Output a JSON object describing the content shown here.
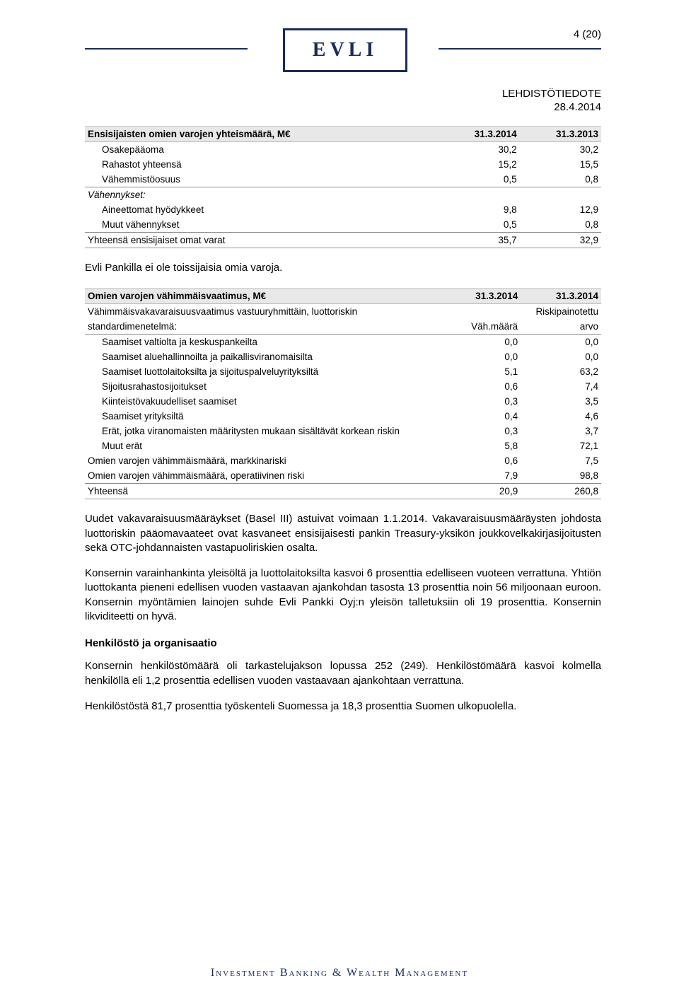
{
  "meta": {
    "page_label": "4 (20)",
    "logo_text": "EVLI",
    "doc_type": "LEHDISTÖTIEDOTE",
    "date": "28.4.2014"
  },
  "table1": {
    "title": "Ensisijaisten omien varojen yhteismäärä, M€",
    "col1": "31.3.2014",
    "col2": "31.3.2013",
    "rows": [
      {
        "label": "Osakepääoma",
        "v1": "30,2",
        "v2": "30,2",
        "indent": true
      },
      {
        "label": "Rahastot yhteensä",
        "v1": "15,2",
        "v2": "15,5",
        "indent": true
      },
      {
        "label": "Vähemmistöosuus",
        "v1": "0,5",
        "v2": "0,8",
        "indent": true,
        "thin": true
      }
    ],
    "vahen_label": "Vähennykset:",
    "vahen_rows": [
      {
        "label": "Aineettomat hyödykkeet",
        "v1": "9,8",
        "v2": "12,9",
        "indent": true
      },
      {
        "label": "Muut vähennykset",
        "v1": "0,5",
        "v2": "0,8",
        "indent": true,
        "thin": true
      }
    ],
    "total": {
      "label": "Yhteensä ensisijaiset omat varat",
      "v1": "35,7",
      "v2": "32,9"
    }
  },
  "note": "Evli Pankilla ei ole toissijaisia omia varoja.",
  "table2": {
    "title": "Omien varojen vähimmäisvaatimus, M€",
    "col1": "31.3.2014",
    "col2": "31.3.2014",
    "sub1a": "Vähimmäisvakavaraisuusvaatimus vastuuryhmittäin, luottoriskin",
    "sub1b": "Riskipainotettu",
    "sub2a": "standardimenetelmä:",
    "sub2b": "Väh.määrä",
    "sub2c": "arvo",
    "rows": [
      {
        "label": "Saamiset valtiolta ja keskuspankeilta",
        "v1": "0,0",
        "v2": "0,0",
        "indent": true
      },
      {
        "label": "Saamiset aluehallinnoilta ja paikallisviranomaisilta",
        "v1": "0,0",
        "v2": "0,0",
        "indent": true
      },
      {
        "label": "Saamiset luottolaitoksilta ja sijoituspalveluyrityksiltä",
        "v1": "5,1",
        "v2": "63,2",
        "indent": true
      },
      {
        "label": "Sijoitusrahastosijoitukset",
        "v1": "0,6",
        "v2": "7,4",
        "indent": true
      },
      {
        "label": "Kiinteistövakuudelliset saamiset",
        "v1": "0,3",
        "v2": "3,5",
        "indent": true
      },
      {
        "label": "Saamiset yrityksiltä",
        "v1": "0,4",
        "v2": "4,6",
        "indent": true
      },
      {
        "label": "Erät, jotka viranomaisten määritysten mukaan sisältävät korkean riskin",
        "v1": "0,3",
        "v2": "3,7",
        "indent": true
      },
      {
        "label": "Muut erät",
        "v1": "5,8",
        "v2": "72,1",
        "indent": true
      }
    ],
    "extra": [
      {
        "label": "Omien varojen vähimmäismäärä, markkinariski",
        "v1": "0,6",
        "v2": "7,5"
      },
      {
        "label": "Omien varojen vähimmäismäärä, operatiivinen riski",
        "v1": "7,9",
        "v2": "98,8",
        "thin": true
      }
    ],
    "total": {
      "label": "Yhteensä",
      "v1": "20,9",
      "v2": "260,8"
    }
  },
  "paras": {
    "p1": "Uudet vakavaraisuusmääräykset (Basel III) astuivat voimaan 1.1.2014. Vakavaraisuusmääräysten johdosta luottoriskin pääomavaateet ovat kasvaneet ensisijaisesti pankin Treasury-yksikön joukkovelkakirjasijoitusten sekä OTC-johdannaisten vastapuoliriskien osalta.",
    "p2": "Konsernin varainhankinta yleisöltä ja luottolaitoksilta kasvoi 6 prosenttia edelliseen vuoteen verrattuna. Yhtiön luottokanta pieneni edellisen vuoden vastaavan ajankohdan tasosta 13 prosenttia noin 56 miljoonaan euroon. Konsernin myöntämien lainojen suhde Evli Pankki Oyj:n yleisön talletuksiin oli 19 prosenttia. Konsernin likviditeetti on hyvä.",
    "h1": "Henkilöstö ja organisaatio",
    "p3": "Konsernin henkilöstömäärä oli tarkastelujakson lopussa 252 (249). Henkilöstömäärä kasvoi kolmella henkilöllä eli 1,2 prosenttia edellisen vuoden vastaavaan ajankohtaan verrattuna.",
    "p4": "Henkilöstöstä 81,7 prosenttia työskenteli Suomessa ja 18,3 prosenttia Suomen ulkopuolella."
  },
  "footer": "Investment Banking & Wealth Management"
}
